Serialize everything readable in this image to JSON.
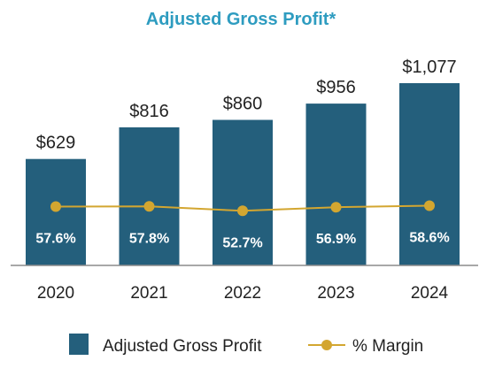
{
  "chart_data": {
    "type": "bar",
    "title": "Adjusted Gross Profit*",
    "categories": [
      "2020",
      "2021",
      "2022",
      "2023",
      "2024"
    ],
    "series": [
      {
        "name": "Adjusted Gross Profit",
        "type": "bar",
        "values": [
          629,
          816,
          860,
          956,
          1077
        ],
        "labels": [
          "$629",
          "$816",
          "$860",
          "$956",
          "$1,077"
        ]
      },
      {
        "name": "% Margin",
        "type": "line",
        "values": [
          57.6,
          57.8,
          52.7,
          56.9,
          58.6
        ],
        "labels": [
          "57.6%",
          "57.8%",
          "52.7%",
          "56.9%",
          "58.6%"
        ]
      }
    ],
    "legend_position": "bottom",
    "grid": false
  },
  "colors": {
    "title": "#2e9cc0",
    "bar": "#245f7c",
    "line": "#d3a630",
    "axis": "#8c8c8c",
    "text": "#222222",
    "inner_label": "#ffffff"
  }
}
